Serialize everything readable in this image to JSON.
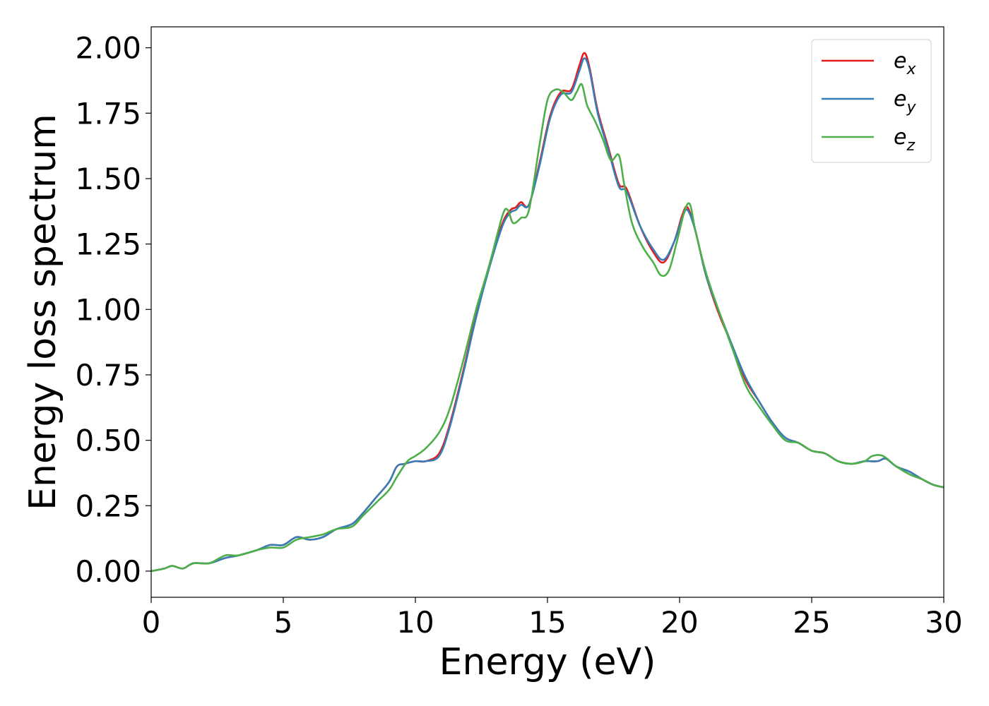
{
  "chart_data": {
    "type": "line",
    "xlabel": "Energy (eV)",
    "ylabel": "Energy loss spectrum",
    "xlim": [
      0,
      30
    ],
    "ylim": [
      -0.1,
      2.08
    ],
    "xticks": [
      0,
      5,
      10,
      15,
      20,
      25,
      30
    ],
    "xtick_labels": [
      "0",
      "5",
      "10",
      "15",
      "20",
      "25",
      "30"
    ],
    "yticks": [
      0,
      0.25,
      0.5,
      0.75,
      1.0,
      1.25,
      1.5,
      1.75,
      2.0
    ],
    "ytick_labels": [
      "0.00",
      "0.25",
      "0.50",
      "0.75",
      "1.00",
      "1.25",
      "1.50",
      "1.75",
      "2.00"
    ],
    "grid": false,
    "legend_position": "top-right",
    "series": [
      {
        "name": "e_x",
        "label_base": "e",
        "label_sub": "x",
        "color": "#e41a1c",
        "x": [
          0,
          0.5,
          0.8,
          1.2,
          1.6,
          2.2,
          2.8,
          3.3,
          4.0,
          4.5,
          5.0,
          5.5,
          6.0,
          6.5,
          7.0,
          7.6,
          8.0,
          8.5,
          9.0,
          9.3,
          9.6,
          10.0,
          10.4,
          10.9,
          11.3,
          11.8,
          12.3,
          12.8,
          13.3,
          13.6,
          13.8,
          14.0,
          14.3,
          14.7,
          15.1,
          15.5,
          15.9,
          16.2,
          16.4,
          16.6,
          16.9,
          17.3,
          17.7,
          18.0,
          18.5,
          19.0,
          19.4,
          19.8,
          20.1,
          20.3,
          20.6,
          21.0,
          21.5,
          22.0,
          22.5,
          23.0,
          23.5,
          24.0,
          24.5,
          25.0,
          25.5,
          26.0,
          26.5,
          27.0,
          27.5,
          27.8,
          28.2,
          28.7,
          29.2,
          29.6,
          30.0
        ],
        "y": [
          0.0,
          0.01,
          0.02,
          0.01,
          0.03,
          0.03,
          0.05,
          0.06,
          0.08,
          0.1,
          0.1,
          0.13,
          0.12,
          0.13,
          0.16,
          0.18,
          0.22,
          0.28,
          0.34,
          0.4,
          0.41,
          0.42,
          0.42,
          0.45,
          0.56,
          0.76,
          0.98,
          1.17,
          1.33,
          1.38,
          1.39,
          1.41,
          1.4,
          1.56,
          1.74,
          1.83,
          1.84,
          1.93,
          1.98,
          1.92,
          1.76,
          1.62,
          1.48,
          1.46,
          1.32,
          1.22,
          1.18,
          1.26,
          1.36,
          1.39,
          1.3,
          1.13,
          0.98,
          0.86,
          0.73,
          0.65,
          0.57,
          0.51,
          0.49,
          0.46,
          0.45,
          0.42,
          0.41,
          0.42,
          0.42,
          0.43,
          0.4,
          0.38,
          0.35,
          0.33,
          0.32
        ]
      },
      {
        "name": "e_y",
        "label_base": "e",
        "label_sub": "y",
        "color": "#377eb8",
        "x": [
          0,
          0.5,
          0.8,
          1.2,
          1.6,
          2.2,
          2.8,
          3.3,
          4.0,
          4.5,
          5.0,
          5.5,
          6.0,
          6.5,
          7.0,
          7.6,
          8.0,
          8.5,
          9.0,
          9.3,
          9.6,
          10.0,
          10.4,
          10.9,
          11.3,
          11.8,
          12.3,
          12.8,
          13.3,
          13.6,
          13.8,
          14.0,
          14.3,
          14.7,
          15.1,
          15.5,
          15.9,
          16.2,
          16.4,
          16.6,
          16.9,
          17.3,
          17.7,
          18.0,
          18.5,
          19.0,
          19.4,
          19.8,
          20.1,
          20.3,
          20.6,
          21.0,
          21.5,
          22.0,
          22.5,
          23.0,
          23.5,
          24.0,
          24.5,
          25.0,
          25.5,
          26.0,
          26.5,
          27.0,
          27.5,
          27.8,
          28.2,
          28.7,
          29.2,
          29.6,
          30.0
        ],
        "y": [
          0.0,
          0.01,
          0.02,
          0.01,
          0.03,
          0.03,
          0.05,
          0.06,
          0.08,
          0.1,
          0.1,
          0.13,
          0.12,
          0.13,
          0.16,
          0.18,
          0.22,
          0.28,
          0.34,
          0.4,
          0.41,
          0.42,
          0.42,
          0.44,
          0.55,
          0.75,
          0.97,
          1.16,
          1.32,
          1.37,
          1.38,
          1.4,
          1.4,
          1.55,
          1.73,
          1.82,
          1.83,
          1.91,
          1.96,
          1.91,
          1.75,
          1.61,
          1.47,
          1.45,
          1.32,
          1.23,
          1.19,
          1.26,
          1.35,
          1.38,
          1.3,
          1.13,
          0.99,
          0.86,
          0.74,
          0.65,
          0.57,
          0.51,
          0.49,
          0.46,
          0.45,
          0.42,
          0.41,
          0.42,
          0.42,
          0.43,
          0.4,
          0.38,
          0.35,
          0.33,
          0.32
        ]
      },
      {
        "name": "e_z",
        "label_base": "e",
        "label_sub": "z",
        "color": "#4daf4a",
        "x": [
          0,
          0.5,
          0.8,
          1.2,
          1.6,
          2.2,
          2.8,
          3.3,
          4.0,
          4.5,
          5.0,
          5.5,
          6.0,
          6.5,
          7.0,
          7.6,
          8.0,
          8.5,
          9.0,
          9.3,
          9.7,
          10.0,
          10.4,
          10.9,
          11.3,
          11.8,
          12.3,
          12.8,
          13.3,
          13.5,
          13.7,
          14.0,
          14.3,
          14.7,
          15.0,
          15.3,
          15.6,
          15.9,
          16.1,
          16.3,
          16.5,
          16.8,
          17.1,
          17.4,
          17.7,
          17.9,
          18.2,
          18.6,
          19.0,
          19.3,
          19.6,
          19.9,
          20.2,
          20.4,
          20.6,
          21.0,
          21.5,
          22.0,
          22.5,
          23.0,
          23.5,
          24.0,
          24.5,
          25.0,
          25.5,
          26.0,
          26.5,
          27.0,
          27.3,
          27.7,
          28.2,
          28.7,
          29.2,
          29.6,
          30.0
        ],
        "y": [
          0.0,
          0.01,
          0.02,
          0.01,
          0.03,
          0.03,
          0.06,
          0.06,
          0.08,
          0.09,
          0.09,
          0.12,
          0.13,
          0.14,
          0.16,
          0.17,
          0.21,
          0.26,
          0.31,
          0.36,
          0.42,
          0.44,
          0.47,
          0.53,
          0.62,
          0.8,
          1.0,
          1.17,
          1.36,
          1.38,
          1.33,
          1.35,
          1.38,
          1.63,
          1.8,
          1.84,
          1.83,
          1.8,
          1.83,
          1.86,
          1.78,
          1.72,
          1.65,
          1.57,
          1.59,
          1.48,
          1.33,
          1.24,
          1.18,
          1.13,
          1.15,
          1.26,
          1.38,
          1.4,
          1.3,
          1.14,
          0.99,
          0.85,
          0.71,
          0.63,
          0.56,
          0.5,
          0.49,
          0.46,
          0.45,
          0.42,
          0.41,
          0.42,
          0.44,
          0.44,
          0.4,
          0.37,
          0.35,
          0.33,
          0.32
        ]
      }
    ]
  }
}
